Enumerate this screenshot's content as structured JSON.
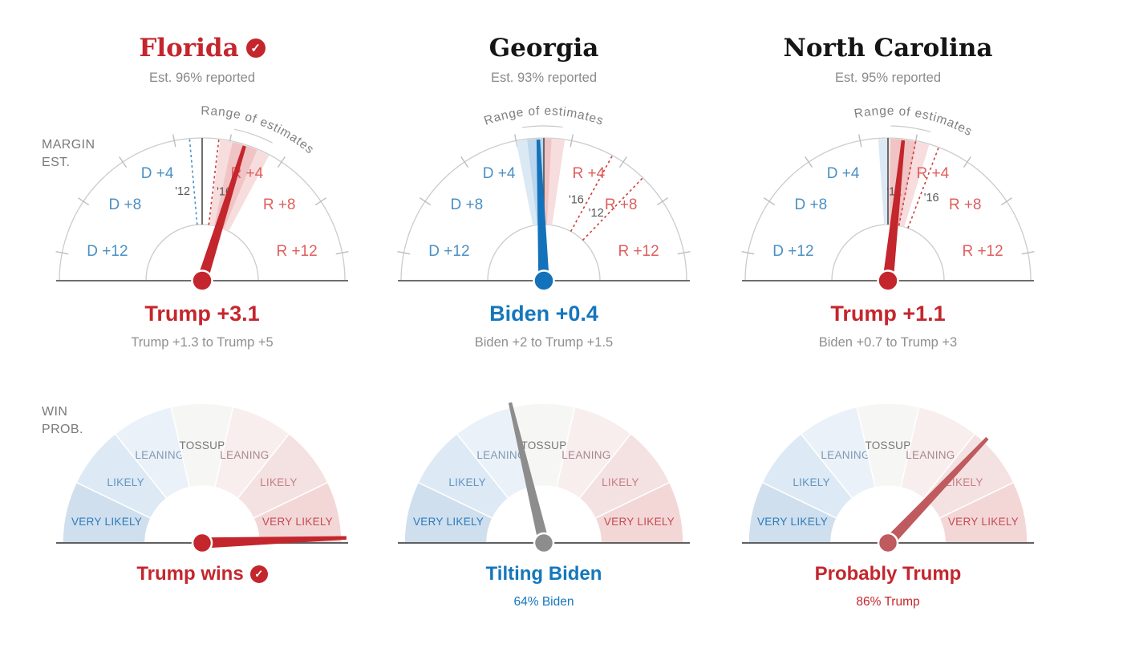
{
  "row_labels": {
    "margin_line1": "MARGIN",
    "margin_line2": "EST.",
    "win_line1": "WIN",
    "win_line2": "PROB."
  },
  "colors": {
    "red_strong": "#c4262d",
    "blue_strong": "#1577bc",
    "red_axis_label": "#e05e5e",
    "blue_axis_label": "#4a90c4",
    "gray_subtitle": "#8f8f8f",
    "title_black": "#151515",
    "baseline": "#6e6e6e",
    "arc_stroke": "#cccccc",
    "tick": "#bdbdbd",
    "zero_line": "#4d4d4d",
    "hist_red": "#cc3b3b",
    "hist_blue": "#4a90c8",
    "hist_label": "#555555",
    "annotation_text": "#808080",
    "annotation_arc": "#c9c9c9",
    "wedge_red_dark": "#f0c3c4",
    "wedge_red_light": "#f7dddd",
    "wedge_blue_dark": "#bcd7ee",
    "wedge_blue_light": "#dbe9f5",
    "win_segment_fills": [
      "#cfdfee",
      "#dde9f4",
      "#ebf1f8",
      "#f6f6f4",
      "#f8eeee",
      "#f4e1e1",
      "#f3d7d7"
    ],
    "win_label_colors": [
      "#2d7abc",
      "#6396c2",
      "#7e99b4",
      "#777777",
      "#a8878e",
      "#c58087",
      "#c54a54"
    ]
  },
  "axis": {
    "margin_max": 16,
    "margin_ticks": [
      -14,
      -10,
      -6,
      -2,
      2,
      6,
      10,
      14
    ],
    "margin_labels": [
      {
        "text": "D +4",
        "value": -4
      },
      {
        "text": "D +8",
        "value": -8
      },
      {
        "text": "D +12",
        "value": -12
      },
      {
        "text": "R +4",
        "value": 4
      },
      {
        "text": "R +8",
        "value": 8
      },
      {
        "text": "R +12",
        "value": 12
      }
    ],
    "annotation": "Range of estimates",
    "win_segments": [
      "VERY LIKELY",
      "LIKELY",
      "LEANING",
      "TOSSUP",
      "LEANING",
      "LIKELY",
      "VERY LIKELY"
    ]
  },
  "chart_data": [
    {
      "type": "gauge",
      "state": "Florida",
      "called": true,
      "title_color": "#c4262d",
      "reported": "Est. 96% reported",
      "margin": {
        "title": "Trump +3.1",
        "title_color": "#c4262d",
        "subtitle": "Trump +1.3 to Trump +5",
        "value": 3.1,
        "range": [
          1.3,
          5
        ],
        "history": [
          {
            "label": "'12",
            "value": -0.9,
            "side": "left"
          },
          {
            "label": "'16",
            "value": 1.2,
            "side": "right"
          }
        ],
        "annotation_mid_deg": 20,
        "needle_color": "#c4262d"
      },
      "win": {
        "title": "Trump wins",
        "title_color": "#c4262d",
        "called": true,
        "subtitle": "",
        "subtitle_color": "#c4262d",
        "needle_deg": 88,
        "needle_color": "#c4262d"
      }
    },
    {
      "type": "gauge",
      "state": "Georgia",
      "called": false,
      "title_color": "#151515",
      "reported": "Est. 93% reported",
      "margin": {
        "title": "Biden +0.4",
        "title_color": "#1577bc",
        "subtitle": "Biden +2 to Trump +1.5",
        "value": -0.4,
        "range": [
          -2,
          1.5
        ],
        "history": [
          {
            "label": "'16",
            "value": 5.1,
            "side": "left"
          },
          {
            "label": "'12",
            "value": 7.8,
            "side": "left"
          }
        ],
        "annotation_mid_deg": 0,
        "needle_color": "#1472ba"
      },
      "win": {
        "title": "Tilting Biden",
        "title_color": "#1577bc",
        "called": false,
        "subtitle": "64% Biden",
        "subtitle_color": "#1577bc",
        "needle_deg": -13.5,
        "needle_color": "#8d8d8d"
      }
    },
    {
      "type": "gauge",
      "state": "North Carolina",
      "called": false,
      "title_color": "#151515",
      "reported": "Est. 95% reported",
      "margin": {
        "title": "Trump +1.1",
        "title_color": "#c4262d",
        "subtitle": "Biden +0.7 to Trump +3",
        "value": 1.1,
        "range": [
          -0.7,
          3
        ],
        "history": [
          {
            "label": "'12",
            "value": 2.0,
            "side": "left"
          },
          {
            "label": "'16",
            "value": 3.7,
            "side": "right"
          }
        ],
        "annotation_mid_deg": 9,
        "needle_color": "#c4262d"
      },
      "win": {
        "title": "Probably Trump",
        "title_color": "#c4262d",
        "called": false,
        "subtitle": "86% Trump",
        "subtitle_color": "#c4262d",
        "needle_deg": 43.5,
        "needle_color": "#bf5a5f"
      }
    }
  ]
}
